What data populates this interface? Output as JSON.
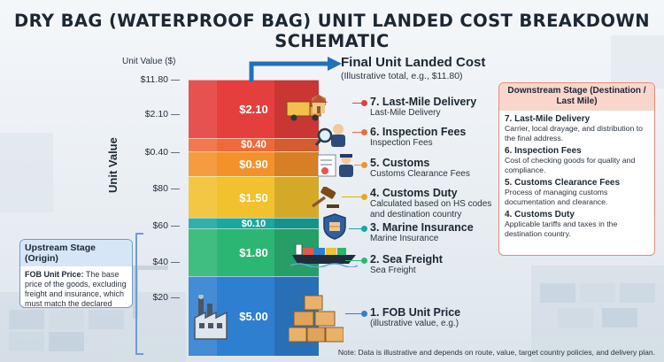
{
  "title": "DRY BAG (WATERPROOF BAG) UNIT LANDED COST BREAKDOWN SCHEMATIC",
  "y_axis": {
    "unit_label": "Unit Value ($)",
    "title": "Unit Value",
    "ticks": [
      "$11.80",
      "$2.10",
      "$0.40",
      "$80",
      "$60",
      "$40",
      "$20"
    ]
  },
  "final": {
    "title": "Final Unit Landed Cost",
    "subtitle": "(Illustrative total, e.g., $11.80)"
  },
  "segments": [
    {
      "value_label": "$5.00",
      "value": 5.0,
      "color": "#2f7fd0"
    },
    {
      "value_label": "$1.80",
      "value": 1.8,
      "color": "#2bb673"
    },
    {
      "value_label": "$0.10",
      "value": 0.1,
      "color": "#19a7a0"
    },
    {
      "value_label": "$1.50",
      "value": 1.5,
      "color": "#f2c12e"
    },
    {
      "value_label": "$0.90",
      "value": 0.9,
      "color": "#f4912b"
    },
    {
      "value_label": "$0.40",
      "value": 0.4,
      "color": "#ef6a3b"
    },
    {
      "value_label": "$2.10",
      "value": 2.1,
      "color": "#e43f3c"
    }
  ],
  "callouts": [
    {
      "title": "7. Last-Mile Delivery",
      "sub": "Last-Mile Delivery",
      "color": "#e43f3c"
    },
    {
      "title": "6. Inspection Fees",
      "sub": "Inspection Fees",
      "color": "#ef6a3b"
    },
    {
      "title": "5. Customs",
      "sub": "Customs Clearance Fees",
      "color": "#f4912b"
    },
    {
      "title": "4. Customs Duty",
      "sub": "Calculated based on HS codes and destination country",
      "color": "#e0ad1a"
    },
    {
      "title": "3. Marine Insurance",
      "sub": "Marine Insurance",
      "color": "#19a7a0"
    },
    {
      "title": "2. Sea Freight",
      "sub": "Sea Freight",
      "color": "#2bb673"
    },
    {
      "title": "1. FOB Unit Price",
      "sub": "(illustrative value, e.g.)",
      "color": "#2f7fd0"
    }
  ],
  "downstream": {
    "head": "Downstream Stage (Destination / Last Mile)",
    "items": [
      {
        "title": "7. Last-Mile Delivery",
        "desc": "Carrier, local drayage, and distribution to the final address."
      },
      {
        "title": "6. Inspection Fees",
        "desc": "Cost of checking goods for quality and compliance."
      },
      {
        "title": "5. Customs Clearance Fees",
        "desc": "Process of managing customs documentation and clearance."
      },
      {
        "title": "4. Customs Duty",
        "desc": "Applicable tariffs and taxes in the destination country."
      }
    ]
  },
  "upstream": {
    "head": "Upstream Stage (Origin)",
    "lead": "FOB Unit Price:",
    "desc": " The base price of the goods, excluding freight and insurance, which must match the declared value"
  },
  "note": "Note: Data is illustrative and depends on route, value, target country policies, and delivery plan."
}
